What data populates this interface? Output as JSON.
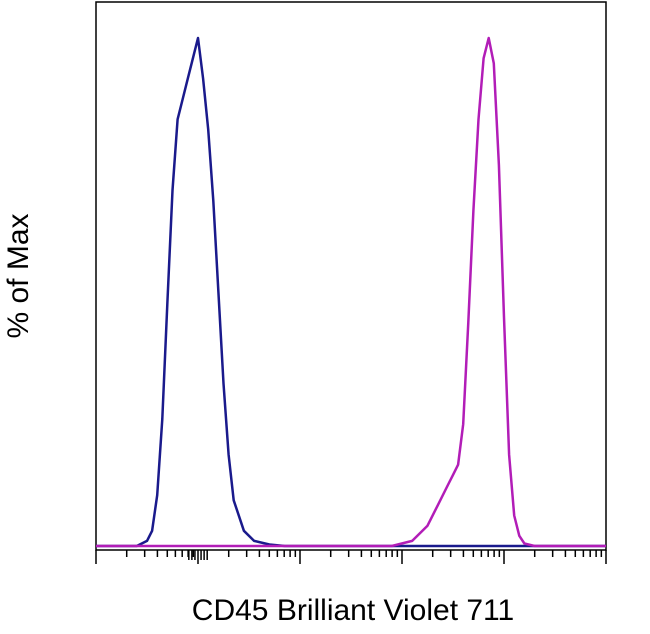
{
  "chart_data": {
    "type": "line",
    "xlabel": "CD45 Brilliant Violet 711",
    "ylabel": "% of Max",
    "x_scale": "log",
    "xlim": [
      -1,
      4
    ],
    "ylim": [
      0,
      100
    ],
    "grid": false,
    "series": [
      {
        "color": "#1a1a8c",
        "x": [
          -1.0,
          -0.6,
          -0.5,
          -0.45,
          -0.4,
          -0.35,
          -0.3,
          -0.25,
          -0.2,
          -0.15,
          -0.1,
          -0.05,
          0.0,
          0.05,
          0.1,
          0.15,
          0.2,
          0.25,
          0.3,
          0.35,
          0.45,
          0.55,
          0.7,
          0.85,
          1.0,
          4.0
        ],
        "y": [
          0,
          0,
          1,
          3,
          10,
          25,
          48,
          70,
          84,
          88,
          92,
          96,
          100,
          92,
          82,
          68,
          50,
          32,
          18,
          9,
          3,
          1,
          0.3,
          0,
          0,
          0
        ]
      },
      {
        "color": "#b21db7",
        "x": [
          -1.0,
          1.9,
          2.1,
          2.25,
          2.35,
          2.45,
          2.5,
          2.55,
          2.6,
          2.65,
          2.7,
          2.75,
          2.8,
          2.85,
          2.9,
          2.95,
          3.0,
          3.05,
          3.1,
          3.15,
          3.2,
          3.3,
          3.45,
          4.0
        ],
        "y": [
          0,
          0,
          1,
          4,
          8,
          12,
          14,
          16,
          24,
          44,
          66,
          84,
          96,
          100,
          95,
          75,
          45,
          18,
          6,
          2,
          0.5,
          0,
          0,
          0
        ]
      }
    ]
  }
}
